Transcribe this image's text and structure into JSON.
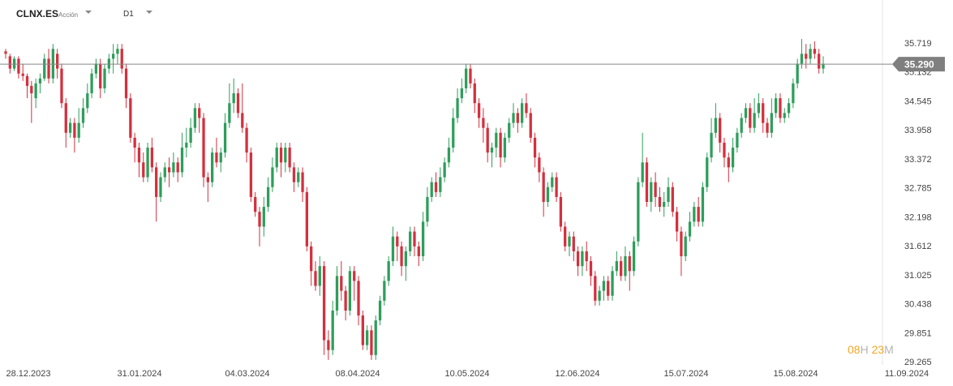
{
  "header": {
    "symbol": "CLNX.ES",
    "product_type": "Acción",
    "timeframe": "D1"
  },
  "countdown": {
    "hours": "08",
    "hours_unit": "H",
    "minutes": "23",
    "minutes_unit": "M"
  },
  "colors": {
    "up": "#2e9e5b",
    "down": "#d3303e",
    "price_line": "#888888",
    "price_label_bg": "#7f7f7f",
    "countdown": "#f5a623"
  },
  "chart_data": {
    "type": "candlestick",
    "current_price": "35.290",
    "current_price_value": 35.29,
    "y_ticks": [
      "35.719",
      "35.132",
      "34.545",
      "33.958",
      "33.372",
      "32.785",
      "32.198",
      "31.612",
      "31.025",
      "30.438",
      "29.851",
      "29.265"
    ],
    "ylim": [
      29.265,
      35.719
    ],
    "x_ticks": [
      "28.12.2023",
      "31.01.2024",
      "04.03.2024",
      "08.04.2024",
      "10.05.2024",
      "12.06.2024",
      "15.07.2024",
      "15.08.2024",
      "11.09.2024"
    ],
    "grid": false,
    "candles": [
      [
        35.55,
        35.5,
        35.6,
        35.4
      ],
      [
        35.45,
        35.2,
        35.5,
        35.1
      ],
      [
        35.2,
        35.4,
        35.45,
        35.15
      ],
      [
        35.4,
        35.1,
        35.45,
        35.0
      ],
      [
        35.1,
        35.05,
        35.3,
        34.95
      ],
      [
        35.05,
        34.85,
        35.1,
        34.6
      ],
      [
        34.85,
        34.7,
        34.95,
        34.1
      ],
      [
        34.6,
        34.9,
        35.0,
        34.4
      ],
      [
        34.9,
        35.0,
        35.1,
        34.7
      ],
      [
        35.0,
        35.4,
        35.5,
        34.95
      ],
      [
        35.4,
        35.0,
        35.6,
        34.9
      ],
      [
        35.0,
        35.6,
        35.7,
        34.9
      ],
      [
        35.5,
        35.2,
        35.6,
        35.0
      ],
      [
        35.2,
        34.5,
        35.3,
        34.4
      ],
      [
        34.5,
        33.9,
        34.6,
        33.6
      ],
      [
        33.9,
        34.1,
        34.2,
        33.8
      ],
      [
        34.1,
        33.8,
        34.2,
        33.5
      ],
      [
        33.8,
        34.1,
        34.4,
        33.7
      ],
      [
        34.1,
        34.4,
        34.6,
        34.0
      ],
      [
        34.4,
        34.7,
        34.9,
        34.3
      ],
      [
        34.7,
        35.1,
        35.2,
        34.6
      ],
      [
        35.1,
        35.3,
        35.4,
        35.0
      ],
      [
        35.3,
        34.8,
        35.4,
        34.6
      ],
      [
        34.8,
        35.2,
        35.3,
        34.7
      ],
      [
        35.2,
        35.4,
        35.5,
        35.1
      ],
      [
        35.4,
        35.5,
        35.7,
        35.1
      ],
      [
        35.5,
        35.6,
        35.7,
        35.3
      ],
      [
        35.6,
        35.2,
        35.7,
        35.1
      ],
      [
        35.2,
        34.6,
        35.3,
        34.4
      ],
      [
        34.6,
        33.8,
        34.7,
        33.7
      ],
      [
        33.8,
        33.6,
        33.9,
        33.3
      ],
      [
        33.6,
        33.3,
        33.7,
        33.0
      ],
      [
        33.3,
        33.0,
        33.5,
        32.9
      ],
      [
        33.0,
        33.6,
        33.7,
        32.9
      ],
      [
        33.6,
        33.2,
        33.8,
        33.1
      ],
      [
        33.2,
        32.6,
        33.3,
        32.1
      ],
      [
        32.6,
        33.0,
        33.1,
        32.5
      ],
      [
        33.0,
        33.2,
        33.3,
        32.9
      ],
      [
        33.2,
        33.1,
        33.4,
        32.8
      ],
      [
        33.1,
        33.3,
        33.5,
        33.0
      ],
      [
        33.3,
        33.1,
        33.4,
        32.9
      ],
      [
        33.1,
        33.6,
        33.9,
        33.0
      ],
      [
        33.6,
        33.7,
        34.0,
        33.4
      ],
      [
        33.7,
        34.0,
        34.2,
        33.6
      ],
      [
        34.0,
        34.4,
        34.5,
        33.9
      ],
      [
        34.4,
        34.2,
        34.5,
        33.9
      ],
      [
        34.2,
        33.0,
        34.3,
        32.8
      ],
      [
        33.0,
        32.9,
        33.1,
        32.5
      ],
      [
        32.9,
        33.5,
        33.6,
        32.8
      ],
      [
        33.5,
        33.3,
        33.8,
        33.2
      ],
      [
        33.3,
        33.5,
        33.6,
        33.1
      ],
      [
        33.5,
        34.1,
        34.3,
        33.4
      ],
      [
        34.1,
        34.5,
        34.9,
        34.0
      ],
      [
        34.5,
        34.7,
        35.0,
        34.3
      ],
      [
        34.7,
        34.3,
        34.8,
        34.2
      ],
      [
        34.3,
        34.0,
        34.9,
        33.9
      ],
      [
        34.0,
        33.5,
        34.1,
        33.3
      ],
      [
        33.5,
        32.6,
        33.6,
        32.5
      ],
      [
        32.6,
        32.3,
        32.7,
        32.2
      ],
      [
        32.3,
        32.0,
        32.4,
        31.6
      ],
      [
        32.0,
        32.4,
        32.6,
        31.8
      ],
      [
        32.4,
        32.8,
        33.0,
        32.3
      ],
      [
        32.8,
        33.2,
        33.4,
        32.7
      ],
      [
        33.2,
        33.6,
        33.7,
        33.1
      ],
      [
        33.6,
        33.3,
        33.7,
        33.0
      ],
      [
        33.3,
        33.6,
        33.7,
        33.1
      ],
      [
        33.6,
        33.2,
        33.7,
        33.1
      ],
      [
        33.2,
        32.9,
        33.3,
        32.7
      ],
      [
        32.9,
        33.1,
        33.2,
        32.8
      ],
      [
        33.1,
        32.7,
        33.2,
        32.5
      ],
      [
        32.7,
        31.6,
        32.8,
        31.5
      ],
      [
        31.6,
        31.1,
        31.7,
        30.8
      ],
      [
        31.1,
        30.8,
        31.3,
        30.7
      ],
      [
        30.8,
        31.2,
        31.4,
        30.6
      ],
      [
        31.2,
        29.7,
        31.3,
        29.4
      ],
      [
        29.7,
        29.5,
        29.9,
        29.3
      ],
      [
        29.5,
        30.3,
        30.5,
        29.4
      ],
      [
        30.3,
        31.0,
        31.2,
        30.2
      ],
      [
        31.0,
        30.7,
        31.3,
        30.5
      ],
      [
        30.7,
        30.3,
        30.8,
        30.1
      ],
      [
        30.3,
        31.1,
        31.2,
        30.2
      ],
      [
        31.1,
        30.9,
        31.2,
        30.5
      ],
      [
        30.9,
        30.2,
        31.0,
        30.0
      ],
      [
        30.2,
        29.6,
        30.3,
        29.5
      ],
      [
        29.6,
        29.9,
        30.0,
        29.5
      ],
      [
        29.9,
        29.4,
        30.0,
        29.3
      ],
      [
        29.4,
        30.1,
        30.2,
        29.3
      ],
      [
        30.1,
        30.5,
        30.6,
        30.0
      ],
      [
        30.5,
        30.9,
        31.0,
        30.4
      ],
      [
        30.9,
        31.3,
        31.4,
        30.8
      ],
      [
        31.3,
        31.8,
        32.0,
        31.2
      ],
      [
        31.8,
        31.6,
        31.9,
        31.3
      ],
      [
        31.6,
        31.2,
        31.7,
        31.0
      ],
      [
        31.2,
        31.5,
        31.6,
        30.9
      ],
      [
        31.5,
        31.9,
        32.0,
        31.4
      ],
      [
        31.9,
        31.6,
        32.0,
        31.4
      ],
      [
        31.6,
        31.4,
        31.7,
        31.2
      ],
      [
        31.4,
        32.1,
        32.3,
        31.3
      ],
      [
        32.1,
        32.6,
        32.8,
        32.0
      ],
      [
        32.6,
        32.9,
        33.0,
        32.5
      ],
      [
        32.9,
        32.7,
        33.1,
        32.6
      ],
      [
        32.7,
        33.0,
        33.2,
        32.6
      ],
      [
        33.0,
        33.3,
        33.4,
        32.9
      ],
      [
        33.3,
        33.6,
        33.8,
        33.2
      ],
      [
        33.6,
        34.2,
        34.4,
        33.5
      ],
      [
        34.2,
        34.6,
        34.8,
        34.1
      ],
      [
        34.6,
        34.8,
        35.0,
        34.5
      ],
      [
        34.8,
        35.2,
        35.3,
        34.7
      ],
      [
        35.2,
        34.9,
        35.3,
        34.8
      ],
      [
        34.9,
        34.5,
        35.0,
        34.3
      ],
      [
        34.5,
        34.2,
        34.6,
        34.0
      ],
      [
        34.2,
        34.0,
        34.4,
        33.7
      ],
      [
        34.0,
        33.5,
        34.1,
        33.3
      ],
      [
        33.5,
        33.6,
        33.7,
        33.2
      ],
      [
        33.6,
        33.9,
        34.0,
        33.4
      ],
      [
        33.9,
        33.4,
        34.0,
        33.2
      ],
      [
        33.4,
        33.8,
        33.9,
        33.3
      ],
      [
        33.8,
        34.1,
        34.2,
        33.7
      ],
      [
        34.1,
        34.3,
        34.5,
        34.0
      ],
      [
        34.3,
        34.1,
        34.4,
        33.9
      ],
      [
        34.1,
        34.5,
        34.6,
        34.0
      ],
      [
        34.5,
        34.3,
        34.7,
        34.2
      ],
      [
        34.3,
        33.8,
        34.4,
        33.7
      ],
      [
        33.8,
        33.4,
        33.9,
        33.2
      ],
      [
        33.4,
        33.1,
        33.5,
        32.9
      ],
      [
        33.1,
        32.5,
        33.2,
        32.2
      ],
      [
        32.5,
        32.8,
        32.9,
        32.4
      ],
      [
        32.8,
        33.0,
        33.1,
        32.7
      ],
      [
        33.0,
        32.6,
        33.1,
        32.5
      ],
      [
        32.6,
        32.0,
        32.7,
        31.9
      ],
      [
        32.0,
        31.6,
        32.1,
        31.5
      ],
      [
        31.6,
        31.8,
        31.9,
        31.4
      ],
      [
        31.8,
        31.5,
        31.9,
        31.3
      ],
      [
        31.5,
        31.2,
        31.6,
        31.0
      ],
      [
        31.2,
        31.5,
        31.6,
        31.0
      ],
      [
        31.5,
        31.3,
        31.7,
        31.1
      ],
      [
        31.3,
        31.0,
        31.4,
        30.8
      ],
      [
        31.0,
        30.5,
        31.1,
        30.4
      ],
      [
        30.5,
        30.7,
        30.8,
        30.4
      ],
      [
        30.7,
        30.9,
        31.0,
        30.5
      ],
      [
        30.9,
        30.6,
        31.0,
        30.5
      ],
      [
        30.6,
        31.1,
        31.2,
        30.5
      ],
      [
        31.1,
        31.3,
        31.5,
        31.0
      ],
      [
        31.3,
        31.0,
        31.4,
        30.9
      ],
      [
        31.0,
        31.4,
        31.6,
        30.9
      ],
      [
        31.4,
        31.1,
        31.5,
        30.7
      ],
      [
        31.1,
        31.7,
        31.8,
        31.0
      ],
      [
        31.7,
        32.9,
        33.0,
        31.6
      ],
      [
        32.9,
        33.3,
        33.9,
        32.8
      ],
      [
        33.3,
        32.5,
        33.4,
        32.4
      ],
      [
        32.5,
        32.9,
        33.0,
        32.3
      ],
      [
        32.9,
        32.6,
        33.1,
        32.4
      ],
      [
        32.6,
        32.4,
        32.8,
        32.3
      ],
      [
        32.4,
        32.5,
        32.7,
        32.2
      ],
      [
        32.5,
        32.8,
        33.0,
        32.4
      ],
      [
        32.8,
        32.3,
        32.9,
        32.2
      ],
      [
        32.3,
        31.9,
        32.4,
        31.7
      ],
      [
        31.9,
        31.4,
        32.0,
        31.0
      ],
      [
        31.4,
        31.8,
        31.9,
        31.3
      ],
      [
        31.8,
        32.1,
        32.3,
        31.7
      ],
      [
        32.1,
        32.4,
        32.5,
        32.0
      ],
      [
        32.4,
        32.1,
        32.6,
        32.0
      ],
      [
        32.1,
        32.8,
        32.9,
        32.0
      ],
      [
        32.8,
        33.4,
        33.5,
        32.7
      ],
      [
        33.4,
        33.9,
        34.2,
        33.3
      ],
      [
        33.9,
        34.2,
        34.5,
        33.8
      ],
      [
        34.2,
        33.7,
        34.3,
        33.5
      ],
      [
        33.7,
        33.4,
        33.8,
        33.2
      ],
      [
        33.4,
        33.2,
        33.5,
        32.9
      ],
      [
        33.2,
        33.6,
        33.8,
        33.1
      ],
      [
        33.6,
        33.9,
        34.0,
        33.5
      ],
      [
        33.9,
        34.2,
        34.3,
        33.8
      ],
      [
        34.2,
        34.4,
        34.5,
        34.1
      ],
      [
        34.4,
        34.0,
        34.5,
        33.9
      ],
      [
        34.0,
        34.3,
        34.6,
        33.9
      ],
      [
        34.3,
        34.5,
        34.7,
        34.2
      ],
      [
        34.5,
        34.1,
        34.6,
        33.9
      ],
      [
        34.1,
        33.9,
        34.2,
        33.8
      ],
      [
        33.9,
        34.3,
        34.6,
        33.8
      ],
      [
        34.3,
        34.6,
        34.7,
        34.2
      ],
      [
        34.6,
        34.2,
        34.7,
        34.1
      ],
      [
        34.2,
        34.3,
        34.4,
        34.1
      ],
      [
        34.3,
        34.5,
        34.6,
        34.2
      ],
      [
        34.5,
        34.9,
        35.0,
        34.4
      ],
      [
        34.9,
        35.3,
        35.4,
        34.8
      ],
      [
        35.3,
        35.5,
        35.8,
        35.2
      ],
      [
        35.5,
        35.4,
        35.7,
        35.2
      ],
      [
        35.4,
        35.6,
        35.7,
        35.3
      ],
      [
        35.6,
        35.5,
        35.75,
        35.4
      ],
      [
        35.5,
        35.2,
        35.6,
        35.1
      ],
      [
        35.2,
        35.3,
        35.45,
        35.1
      ]
    ]
  }
}
